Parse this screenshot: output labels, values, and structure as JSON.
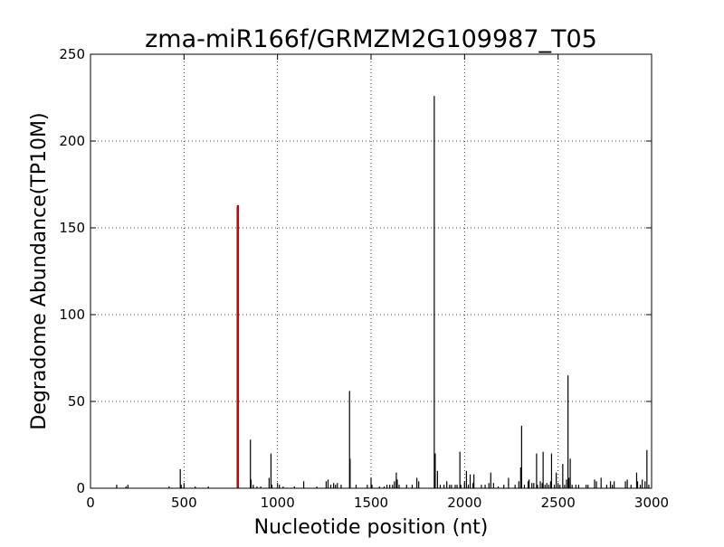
{
  "chart_data": {
    "type": "bar",
    "title": "zma-miR166f/GRMZM2G109987_T05",
    "xlabel": "Nucleotide position (nt)",
    "ylabel": "Degradome Abundance(TP10M)",
    "xlim": [
      0,
      3000
    ],
    "ylim": [
      0,
      250
    ],
    "xticks": [
      0,
      500,
      1000,
      1500,
      2000,
      2500,
      3000
    ],
    "yticks": [
      0,
      50,
      100,
      150,
      200,
      250
    ],
    "xtick_labels": [
      "0",
      "500",
      "1000",
      "1500",
      "2000",
      "2500",
      "3000"
    ],
    "ytick_labels": [
      "0",
      "50",
      "100",
      "150",
      "200",
      "250"
    ],
    "grid": true,
    "colors": {
      "signal": "#000000",
      "target": "#cc0000",
      "grid": "#000000",
      "frame": "#000000"
    },
    "target": {
      "x": [
        786,
        789
      ],
      "y": [
        162,
        163
      ]
    },
    "series": [
      {
        "x": [
          140,
          190,
          200,
          420,
          480,
          485,
          500,
          560,
          630,
          855,
          858,
          870,
          890,
          910,
          955,
          965,
          970,
          1010,
          1030,
          1090,
          1140,
          1210,
          1260,
          1270,
          1285,
          1300,
          1310,
          1320,
          1340,
          1385,
          1388,
          1420,
          1480,
          1500,
          1505,
          1545,
          1570,
          1585,
          1600,
          1615,
          1625,
          1635,
          1640,
          1650,
          1690,
          1720,
          1745,
          1755,
          1838,
          1843,
          1855,
          1870,
          1890,
          1905,
          1920,
          1930,
          1950,
          1960,
          1975,
          1980,
          2000,
          2010,
          2020,
          2030,
          2045,
          2050,
          2090,
          2110,
          2130,
          2140,
          2155,
          2180,
          2210,
          2235,
          2270,
          2290,
          2300,
          2305,
          2320,
          2340,
          2345,
          2360,
          2370,
          2385,
          2390,
          2405,
          2415,
          2420,
          2430,
          2440,
          2450,
          2460,
          2465,
          2480,
          2490,
          2500,
          2510,
          2525,
          2535,
          2545,
          2553,
          2558,
          2565,
          2575,
          2595,
          2610,
          2650,
          2660,
          2695,
          2705,
          2730,
          2760,
          2780,
          2790,
          2800,
          2860,
          2870,
          2890,
          2920,
          2925,
          2940,
          2950,
          2965,
          2975,
          2985
        ],
        "y": [
          2,
          1,
          2,
          1,
          11,
          2,
          1,
          1,
          1,
          28,
          5,
          2,
          1,
          1,
          6,
          20,
          2,
          2,
          1,
          1,
          4,
          1,
          4,
          5,
          2,
          3,
          2,
          3,
          2,
          56,
          17,
          2,
          2,
          6,
          2,
          1,
          1,
          2,
          2,
          2,
          4,
          9,
          5,
          2,
          2,
          2,
          6,
          4,
          226,
          20,
          10,
          2,
          2,
          4,
          2,
          2,
          2,
          2,
          21,
          2,
          4,
          10,
          2,
          8,
          3,
          8,
          2,
          2,
          3,
          9,
          3,
          1,
          2,
          6,
          2,
          4,
          12,
          36,
          2,
          4,
          5,
          3,
          3,
          20,
          2,
          4,
          3,
          21,
          2,
          3,
          2,
          4,
          20,
          2,
          9,
          2,
          2,
          14,
          2,
          5,
          65,
          6,
          17,
          2,
          2,
          2,
          2,
          2,
          5,
          4,
          6,
          2,
          4,
          2,
          4,
          4,
          5,
          2,
          9,
          4,
          2,
          5,
          4,
          22,
          2
        ]
      }
    ]
  }
}
